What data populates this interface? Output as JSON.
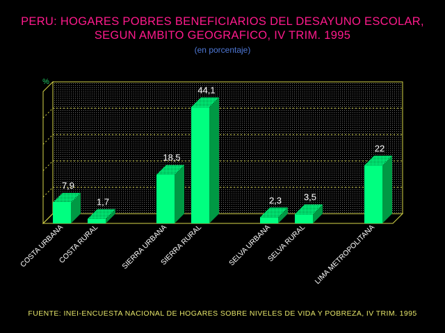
{
  "title_line1": "PERU: HOGARES POBRES BENEFICIARIOS DEL DESAYUNO ESCOLAR,",
  "title_line2": "SEGUN AMBITO GEOGRAFICO, IV TRIM. 1995",
  "subtitle": "(en porcentaje)",
  "source": "FUENTE: INEI-ENCUESTA NACIONAL DE HOGARES SOBRE NIVELES DE VIDA Y POBREZA, IV TRIM. 1995",
  "colors": {
    "bar_front": "#00ff80",
    "bar_side": "#009944",
    "frame": "#d9d94a",
    "title": "#ff1a8c",
    "subtitle": "#4f79d8",
    "ylabel": "#22cc66",
    "labels": "#ffffff"
  },
  "chart_data": {
    "type": "bar",
    "title": "PERU: HOGARES POBRES BENEFICIARIOS DEL DESAYUNO ESCOLAR, SEGUN AMBITO GEOGRAFICO, IV TRIM. 1995",
    "subtitle": "(en porcentaje)",
    "ylabel": "%",
    "xlabel": "",
    "ylim": [
      0,
      50
    ],
    "grid": true,
    "categories": [
      "COSTA URBANA",
      "COSTA RURAL",
      "SIERRA URBANA",
      "SIERRA RURAL",
      "SELVA URBANA",
      "SELVA RURAL",
      "LIMA METROPOLITANA"
    ],
    "values": [
      7.9,
      1.7,
      18.5,
      44.1,
      2.3,
      3.5,
      22
    ],
    "value_labels": [
      "7,9",
      "1,7",
      "18,5",
      "44,1",
      "2,3",
      "3,5",
      "22"
    ]
  }
}
